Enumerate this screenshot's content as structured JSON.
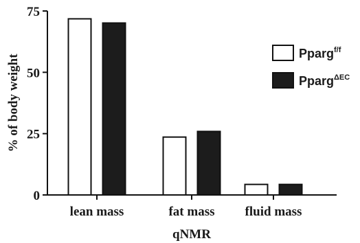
{
  "chart_data": {
    "type": "bar",
    "categories": [
      "lean mass",
      "fat mass",
      "fluid mass"
    ],
    "series": [
      {
        "name": "Ppargf/f",
        "name_base": "Pparg",
        "name_sup": "f/f",
        "fill": "#ffffff",
        "stroke": "#111111",
        "values": [
          71.8,
          23.6,
          4.3
        ]
      },
      {
        "name": "PpargΔEC",
        "name_base": "Pparg",
        "name_sup": "ΔEC",
        "fill": "#1c1c1c",
        "stroke": "#111111",
        "values": [
          70.1,
          25.9,
          4.3
        ]
      }
    ],
    "xlabel": "qNMR",
    "ylabel": "% of body weight",
    "ylim": [
      0,
      75
    ],
    "yticks": [
      0,
      25,
      50,
      75
    ],
    "ytick_labels": [
      "0",
      "25",
      "50",
      "75"
    ],
    "grid": false,
    "legend_position": "right"
  }
}
